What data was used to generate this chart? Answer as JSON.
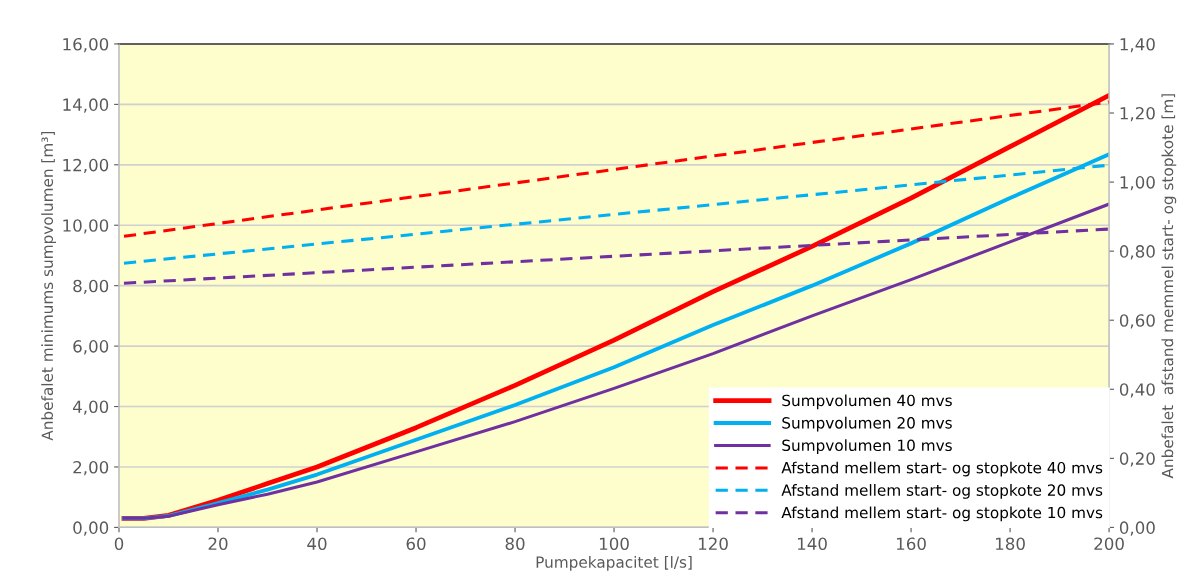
{
  "chart_data": {
    "type": "line",
    "xlabel": "Pumpekapacitet [l/s]",
    "ylabel": "Anbefalet minimums sumpvolumen [m³]",
    "y2label": "Anbefalet  afstand memmel start- og stopkote [m]",
    "xlim": [
      0,
      200
    ],
    "xticks": [
      0,
      20,
      40,
      60,
      80,
      100,
      120,
      140,
      160,
      180,
      200
    ],
    "ylim": [
      0,
      16
    ],
    "yticks": [
      {
        "value": 0,
        "label": "0,00"
      },
      {
        "value": 2,
        "label": "2,00"
      },
      {
        "value": 4,
        "label": "4,00"
      },
      {
        "value": 6,
        "label": "6,00"
      },
      {
        "value": 8,
        "label": "8,00"
      },
      {
        "value": 10,
        "label": "10,00"
      },
      {
        "value": 12,
        "label": "12,00"
      },
      {
        "value": 14,
        "label": "14,00"
      },
      {
        "value": 16,
        "label": "16,00"
      }
    ],
    "y2lim": [
      0,
      1.4
    ],
    "y2ticks": [
      {
        "value": 0,
        "label": "0,00"
      },
      {
        "value": 0.2,
        "label": "0,20"
      },
      {
        "value": 0.4,
        "label": "0,40"
      },
      {
        "value": 0.6,
        "label": "0,60"
      },
      {
        "value": 0.8,
        "label": "0,80"
      },
      {
        "value": 1.0,
        "label": "1,00"
      },
      {
        "value": 1.2,
        "label": "1,20"
      },
      {
        "value": 1.4,
        "label": "1,40"
      }
    ],
    "grid": "y",
    "legend": "bottom right",
    "marker": "none",
    "series": [
      {
        "name": "Sumpvolumen 40 mvs",
        "color": "#ff0000",
        "line_style": "solid",
        "x": [
          1,
          5,
          10,
          20,
          30,
          40,
          60,
          80,
          100,
          120,
          140,
          160,
          180,
          200
        ],
        "values": [
          0.3,
          0.3,
          0.4,
          0.9,
          1.45,
          2.0,
          3.3,
          4.7,
          6.2,
          7.8,
          9.3,
          10.9,
          12.6,
          14.3
        ]
      },
      {
        "name": "Sumpvolumen 20 mvs",
        "color": "#00b0f0",
        "line_style": "solid",
        "x": [
          1,
          5,
          10,
          20,
          30,
          40,
          60,
          80,
          100,
          120,
          140,
          160,
          180,
          200
        ],
        "values": [
          0.3,
          0.3,
          0.38,
          0.8,
          1.25,
          1.75,
          2.9,
          4.05,
          5.3,
          6.7,
          8.0,
          9.4,
          10.9,
          12.35
        ]
      },
      {
        "name": "Sumpvolumen 10 mvs",
        "color": "#7030a0",
        "line_style": "solid",
        "x": [
          1,
          5,
          10,
          20,
          30,
          40,
          60,
          80,
          100,
          120,
          140,
          160,
          180,
          200
        ],
        "values": [
          0.3,
          0.3,
          0.37,
          0.75,
          1.1,
          1.5,
          2.5,
          3.5,
          4.6,
          5.75,
          7.0,
          8.2,
          9.45,
          10.7
        ]
      },
      {
        "name": "Afstand mellem start- og stopkote 40 mvs",
        "color": "#ff0000",
        "line_style": "dashed",
        "axis": "y2",
        "x": [
          1,
          200
        ],
        "values": [
          0.843,
          1.232
        ]
      },
      {
        "name": "Afstand mellem start- og stopkote 20 mvs",
        "color": "#00b0f0",
        "line_style": "dashed",
        "axis": "y2",
        "x": [
          1,
          200
        ],
        "values": [
          0.765,
          1.049
        ]
      },
      {
        "name": "Afstand mellem start- og stopkote 10 mvs",
        "color": "#7030a0",
        "line_style": "dashed",
        "axis": "y2",
        "x": [
          1,
          200
        ],
        "values": [
          0.707,
          0.864
        ]
      }
    ]
  }
}
